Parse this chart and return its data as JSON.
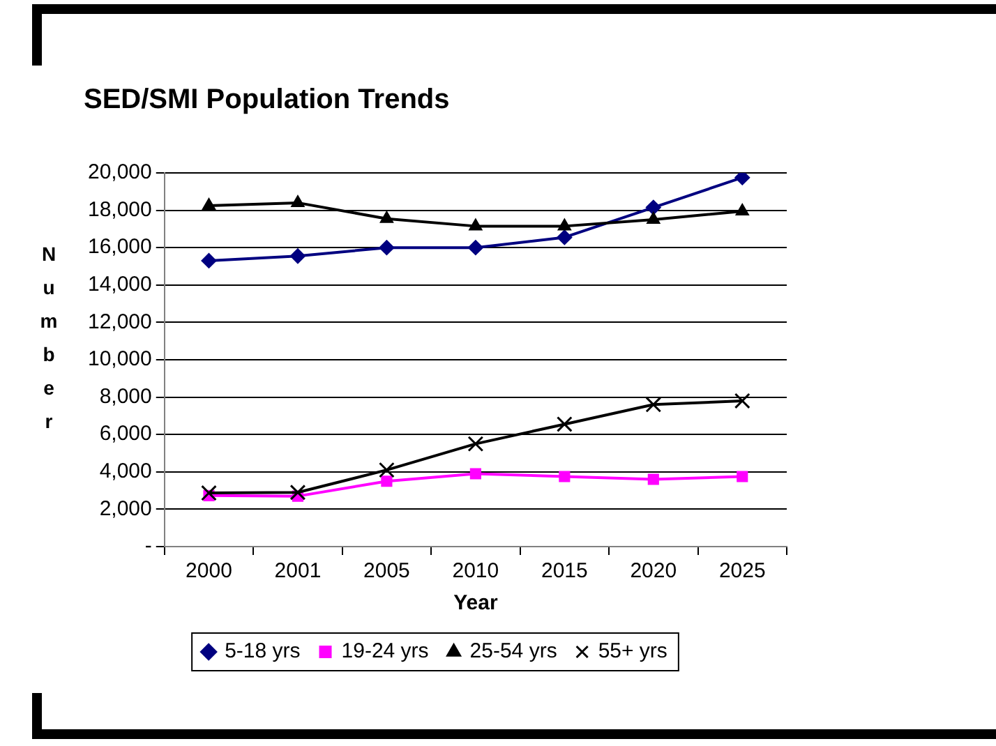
{
  "chart_data": {
    "type": "line",
    "title": "SED/SMI Population Trends",
    "xlabel": "Year",
    "ylabel": "Number",
    "categories": [
      "2000",
      "2001",
      "2005",
      "2010",
      "2015",
      "2020",
      "2025"
    ],
    "series": [
      {
        "name": "5-18 yrs",
        "color": "#000080",
        "marker": "diamond",
        "values": [
          15300,
          15550,
          16000,
          16000,
          16550,
          18150,
          19750
        ]
      },
      {
        "name": "19-24 yrs",
        "color": "#ff00ff",
        "marker": "square",
        "values": [
          2730,
          2700,
          3500,
          3900,
          3750,
          3600,
          3750
        ]
      },
      {
        "name": "25-54 yrs",
        "color": "#000000",
        "marker": "triangle",
        "values": [
          18250,
          18400,
          17550,
          17150,
          17150,
          17500,
          17950
        ]
      },
      {
        "name": "55+ yrs",
        "color": "#000000",
        "marker": "cross",
        "values": [
          2870,
          2900,
          4100,
          5500,
          6550,
          7600,
          7800
        ]
      }
    ],
    "ylim": [
      0,
      20000
    ],
    "yticks": [
      {
        "value": 0,
        "label": "-"
      },
      {
        "value": 2000,
        "label": "2,000"
      },
      {
        "value": 4000,
        "label": "4,000"
      },
      {
        "value": 6000,
        "label": "6,000"
      },
      {
        "value": 8000,
        "label": "8,000"
      },
      {
        "value": 10000,
        "label": "10,000"
      },
      {
        "value": 12000,
        "label": "12,000"
      },
      {
        "value": 14000,
        "label": "14,000"
      },
      {
        "value": 16000,
        "label": "16,000"
      },
      {
        "value": 18000,
        "label": "18,000"
      },
      {
        "value": 20000,
        "label": "20,000"
      }
    ],
    "grid": "y",
    "legend": "bottom"
  }
}
